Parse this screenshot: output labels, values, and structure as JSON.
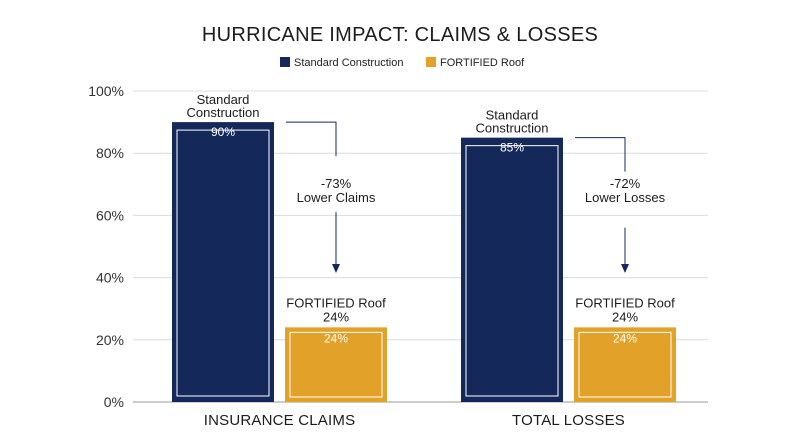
{
  "chart_data": {
    "type": "bar",
    "title": "HURRICANE IMPACT: CLAIMS & LOSSES",
    "categories": [
      "INSURANCE CLAIMS",
      "TOTAL LOSSES"
    ],
    "series": [
      {
        "name": "Standard Construction",
        "values": [
          90,
          85
        ],
        "color": "#14285a",
        "bar_label": [
          "Standard",
          "Construction"
        ]
      },
      {
        "name": "FORTIFIED Roof",
        "values": [
          24,
          24
        ],
        "color": "#e2a22a",
        "bar_label": [
          "FORTIFIED Roof"
        ]
      }
    ],
    "value_labels": {
      "series_0": [
        "90%",
        "85%"
      ],
      "series_1": [
        "24%",
        "24%"
      ],
      "series_1_above": [
        "24%",
        "24%"
      ]
    },
    "annotations": [
      {
        "category": "INSURANCE CLAIMS",
        "lines": [
          "-73%",
          "Lower Claims"
        ]
      },
      {
        "category": "TOTAL LOSSES",
        "lines": [
          "-72%",
          "Lower Losses"
        ]
      }
    ],
    "yticks": [
      "0%",
      "20%",
      "40%",
      "60%",
      "80%",
      "100%"
    ],
    "ylim": [
      0,
      100
    ],
    "grid": true,
    "legend": "top-center"
  }
}
